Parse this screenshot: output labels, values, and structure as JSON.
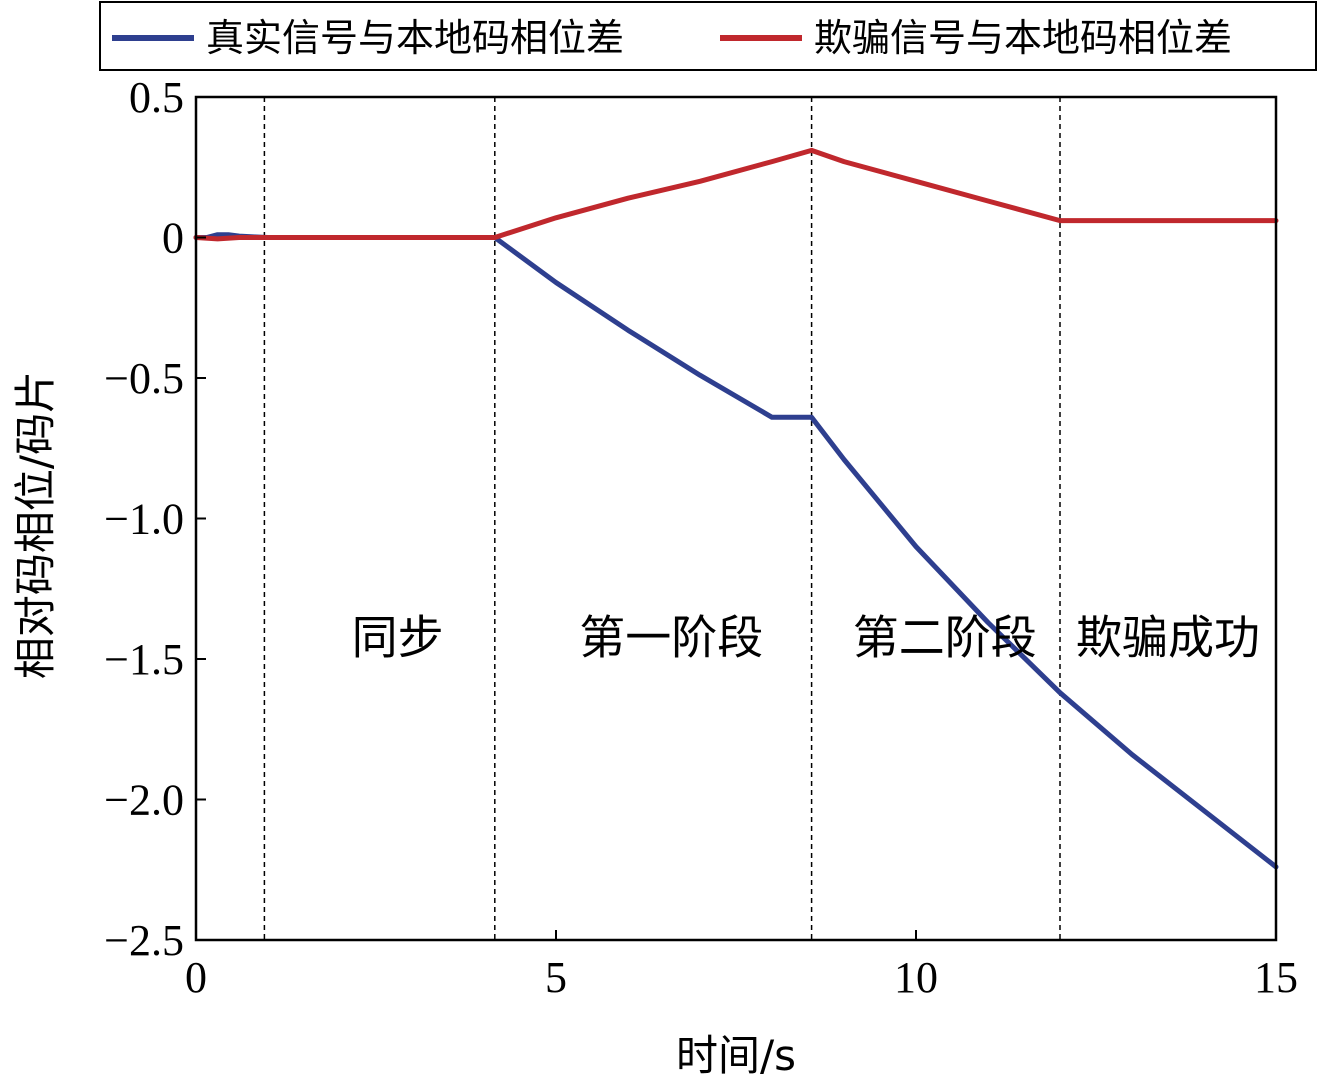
{
  "chart_data": {
    "type": "line",
    "title": "",
    "xlabel": "时间/s",
    "ylabel": "相对码相位/码片",
    "xlim": [
      0,
      15
    ],
    "ylim": [
      -2.5,
      0.5
    ],
    "xticks": [
      {
        "value": 0,
        "label": "0"
      },
      {
        "value": 5,
        "label": "5"
      },
      {
        "value": 10,
        "label": "10"
      },
      {
        "value": 15,
        "label": "15"
      }
    ],
    "yticks": [
      {
        "value": 0.5,
        "label": "0.5"
      },
      {
        "value": 0,
        "label": "0"
      },
      {
        "value": -0.5,
        "label": "−0.5"
      },
      {
        "value": -1.0,
        "label": "−1.0"
      },
      {
        "value": -1.5,
        "label": "−1.5"
      },
      {
        "value": -2.0,
        "label": "−2.0"
      },
      {
        "value": -2.5,
        "label": "−2.5"
      }
    ],
    "grid": false,
    "legend_position": "top",
    "phase_boundaries": [
      0.95,
      4.15,
      8.55,
      12.0
    ],
    "phases": [
      {
        "label": "同步",
        "x": 2.8
      },
      {
        "label": "第一阶段",
        "x": 6.6
      },
      {
        "label": "第二阶段",
        "x": 10.4
      },
      {
        "label": "欺骗成功",
        "x": 13.5
      }
    ],
    "phase_label_y": -1.48,
    "series": [
      {
        "name": "真实信号与本地码相位差",
        "color": "#2e3f8f",
        "x": [
          0,
          0.15,
          0.3,
          0.45,
          0.6,
          0.8,
          1.0,
          2.0,
          3.0,
          4.15,
          5.0,
          6.0,
          7.0,
          8.0,
          8.55,
          9.0,
          10.0,
          11.0,
          12.0,
          13.0,
          14.0,
          15.0
        ],
        "y": [
          0,
          0,
          0.01,
          0.01,
          0.005,
          0.002,
          0,
          0,
          0,
          0,
          -0.16,
          -0.33,
          -0.49,
          -0.64,
          -0.64,
          -0.79,
          -1.1,
          -1.37,
          -1.62,
          -1.84,
          -2.04,
          -2.24
        ]
      },
      {
        "name": "欺骗信号与本地码相位差",
        "color": "#c0282d",
        "x": [
          0,
          0.3,
          0.6,
          1.0,
          2.0,
          3.0,
          4.15,
          5.0,
          6.0,
          7.0,
          8.0,
          8.55,
          9.0,
          10.0,
          11.0,
          12.0,
          12.5,
          13.0,
          14.0,
          15.0
        ],
        "y": [
          0,
          -0.005,
          0,
          0,
          0,
          0,
          0,
          0.07,
          0.14,
          0.2,
          0.27,
          0.31,
          0.27,
          0.2,
          0.13,
          0.06,
          0.06,
          0.06,
          0.06,
          0.06
        ]
      }
    ]
  }
}
